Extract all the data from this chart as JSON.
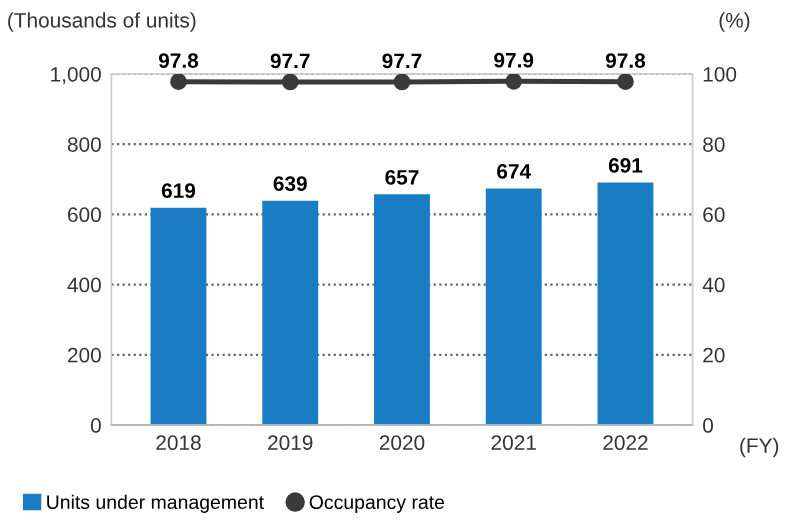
{
  "chart_data": {
    "type": "bar",
    "categories": [
      "2018",
      "2019",
      "2020",
      "2021",
      "2022"
    ],
    "series": [
      {
        "name": "Units under management",
        "color": "#1a7dc4",
        "values": [
          619,
          639,
          657,
          674,
          691
        ]
      },
      {
        "name": "Occupancy rate",
        "type": "line",
        "axis": "y2",
        "color": "#3a3a3a",
        "values": [
          97.8,
          97.7,
          97.7,
          97.9,
          97.8
        ],
        "marker": "circle"
      }
    ],
    "ylabel": "(Thousands of units)",
    "y2label": "(%)",
    "ylim": [
      0,
      1000
    ],
    "yticks": [
      0,
      200,
      400,
      600,
      800,
      {
        "value": 1000,
        "label": "1,000"
      }
    ],
    "y2lim": [
      0,
      100
    ],
    "y2ticks": [
      0,
      20,
      40,
      60,
      80,
      100
    ],
    "grid": "y",
    "data_labels": true,
    "legend": "bottom",
    "annotations": [
      "(FY)"
    ]
  }
}
